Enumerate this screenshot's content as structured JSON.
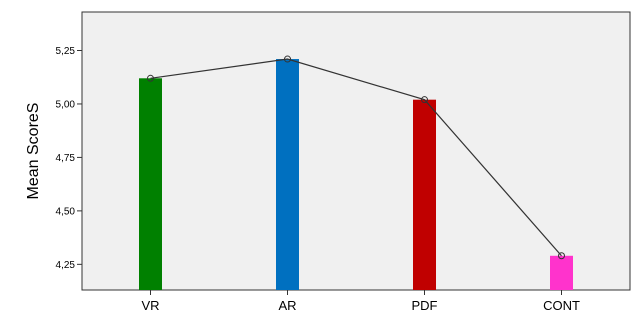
{
  "chart_data": {
    "type": "bar",
    "categories": [
      "VR",
      "AR",
      "PDF",
      "CONT"
    ],
    "values": [
      5.12,
      5.21,
      5.02,
      4.29
    ],
    "line_overlay": true,
    "ylabel": "Mean ScoreS",
    "xlabel": "",
    "ylim": [
      4.13,
      5.43
    ],
    "yticks": [
      "4,25",
      "4,50",
      "4,75",
      "5,00",
      "5,25"
    ],
    "ytick_values": [
      4.25,
      4.5,
      4.75,
      5.0,
      5.25
    ],
    "bar_colors": [
      "#008000",
      "#0070c0",
      "#c00000",
      "#ff33cc"
    ],
    "line_color": "#333333",
    "plot_background": "#f0f0f0",
    "grid": false
  }
}
